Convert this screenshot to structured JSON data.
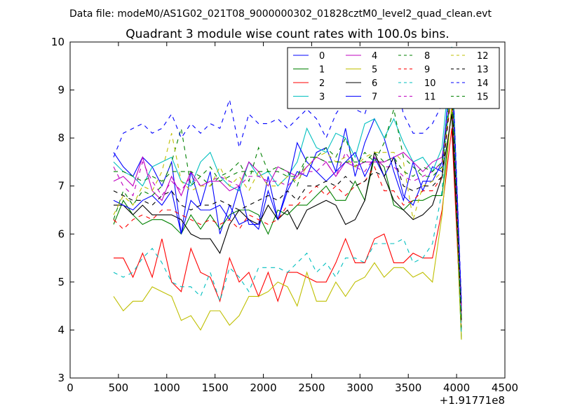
{
  "suptitle": "Data file: modeM0/AS1G02_021T08_9000000302_01828cztM0_level2_quad_clean.evt",
  "chart_data": {
    "type": "line",
    "title": "Quadrant 3 module wise count rates with 100.0s bins.",
    "xlabel": "",
    "ylabel": "",
    "x_offset_label": "+1.91771e8",
    "xlim": [
      0,
      4500
    ],
    "ylim": [
      3,
      10
    ],
    "xticks": [
      "0",
      "500",
      "1000",
      "1500",
      "2000",
      "2500",
      "3000",
      "3500",
      "4000",
      "4500"
    ],
    "yticks": [
      "3",
      "4",
      "5",
      "6",
      "7",
      "8",
      "9",
      "10"
    ],
    "grid": false,
    "legend_position": "top-right",
    "x": [
      450,
      550,
      650,
      750,
      850,
      950,
      1050,
      1150,
      1250,
      1350,
      1450,
      1550,
      1650,
      1750,
      1850,
      1950,
      2050,
      2150,
      2250,
      2350,
      2450,
      2550,
      2650,
      2750,
      2850,
      2950,
      3050,
      3150,
      3250,
      3350,
      3450,
      3550,
      3650,
      3750,
      3850,
      3950,
      4050
    ],
    "series": [
      {
        "name": "0",
        "color": "#0000ff",
        "dash": "solid",
        "values": [
          7.7,
          7.4,
          7.2,
          7.6,
          7.4,
          7.0,
          7.5,
          6.0,
          7.3,
          6.6,
          7.3,
          6.0,
          6.6,
          6.2,
          6.3,
          6.1,
          6.9,
          6.3,
          6.9,
          7.3,
          7.2,
          7.7,
          7.8,
          7.3,
          8.2,
          7.2,
          7.9,
          8.4,
          8.0,
          7.3,
          6.7,
          7.5,
          6.9,
          7.4,
          7.3,
          9.8,
          4.5
        ]
      },
      {
        "name": "1",
        "color": "#008000",
        "dash": "solid",
        "values": [
          6.2,
          6.7,
          6.4,
          6.2,
          6.3,
          6.3,
          6.2,
          6.0,
          6.4,
          6.1,
          6.4,
          6.1,
          6.4,
          6.5,
          6.5,
          6.4,
          6.0,
          6.5,
          6.4,
          6.6,
          6.6,
          6.8,
          7.0,
          6.7,
          6.7,
          7.1,
          6.7,
          7.6,
          7.4,
          6.6,
          6.5,
          6.7,
          6.7,
          6.8,
          6.8,
          8.6,
          3.8
        ]
      },
      {
        "name": "2",
        "color": "#ff0000",
        "dash": "solid",
        "values": [
          5.5,
          5.5,
          5.1,
          5.6,
          5.1,
          5.9,
          5.0,
          4.8,
          5.7,
          5.2,
          5.1,
          4.6,
          5.5,
          5.0,
          5.2,
          4.7,
          5.2,
          4.6,
          5.2,
          5.2,
          5.1,
          5.0,
          5.0,
          5.4,
          5.9,
          5.4,
          5.4,
          5.9,
          6.0,
          5.4,
          5.4,
          5.6,
          5.5,
          5.5,
          6.5,
          8.2,
          4.0
        ]
      },
      {
        "name": "3",
        "color": "#00bfbf",
        "dash": "solid",
        "values": [
          7.5,
          7.3,
          7.2,
          7.0,
          7.4,
          7.5,
          7.6,
          7.1,
          7.0,
          7.5,
          7.7,
          7.2,
          7.0,
          6.9,
          7.5,
          7.2,
          7.3,
          7.0,
          7.2,
          7.5,
          8.2,
          7.8,
          7.7,
          8.1,
          8.0,
          7.6,
          8.3,
          8.4,
          8.0,
          8.4,
          7.9,
          7.5,
          7.6,
          7.3,
          7.8,
          9.9,
          4.2
        ]
      },
      {
        "name": "4",
        "color": "#bf00bf",
        "dash": "solid",
        "values": [
          7.1,
          7.2,
          7.0,
          7.6,
          6.9,
          6.7,
          7.2,
          6.8,
          7.3,
          7.0,
          7.1,
          7.1,
          6.9,
          7.0,
          7.5,
          7.3,
          7.0,
          7.4,
          7.3,
          7.2,
          7.4,
          7.6,
          7.5,
          7.2,
          7.5,
          7.4,
          7.5,
          7.5,
          7.5,
          7.6,
          7.7,
          7.5,
          7.3,
          7.5,
          7.6,
          9.0,
          4.3
        ]
      },
      {
        "name": "5",
        "color": "#bfbf00",
        "dash": "solid",
        "values": [
          4.7,
          4.4,
          4.6,
          4.6,
          4.9,
          4.8,
          4.7,
          4.2,
          4.3,
          4.0,
          4.4,
          4.4,
          4.1,
          4.3,
          4.7,
          4.7,
          4.8,
          5.0,
          4.9,
          4.5,
          5.2,
          4.6,
          4.6,
          5.0,
          4.7,
          5.0,
          5.1,
          5.4,
          5.1,
          5.3,
          5.3,
          5.1,
          5.2,
          5.0,
          6.4,
          8.7,
          3.8
        ]
      },
      {
        "name": "6",
        "color": "#000000",
        "dash": "solid",
        "values": [
          6.6,
          6.6,
          6.4,
          6.6,
          6.4,
          6.4,
          6.4,
          6.3,
          6.0,
          5.9,
          5.9,
          5.6,
          6.2,
          6.5,
          6.3,
          6.2,
          6.6,
          6.3,
          6.5,
          6.1,
          6.5,
          6.6,
          6.7,
          6.6,
          6.2,
          6.3,
          6.7,
          7.7,
          7.2,
          6.7,
          6.5,
          6.3,
          6.4,
          6.6,
          7.2,
          8.5,
          4.2
        ]
      },
      {
        "name": "7",
        "color": "#0000ff",
        "dash": "solid",
        "values": [
          6.7,
          6.6,
          6.5,
          6.7,
          6.8,
          6.6,
          6.9,
          6.0,
          6.7,
          6.5,
          6.5,
          6.6,
          6.3,
          7.0,
          6.2,
          6.2,
          7.2,
          6.3,
          7.0,
          7.9,
          7.5,
          7.3,
          7.1,
          7.3,
          7.5,
          7.7,
          7.2,
          7.6,
          7.2,
          7.6,
          6.8,
          6.6,
          7.1,
          7.1,
          7.5,
          9.5,
          4.4
        ]
      },
      {
        "name": "8",
        "color": "#008000",
        "dash": "dashed",
        "values": [
          6.3,
          6.9,
          6.6,
          6.9,
          6.8,
          7.0,
          7.5,
          8.2,
          7.0,
          7.2,
          7.0,
          7.2,
          7.3,
          7.5,
          7.1,
          7.8,
          7.3,
          7.4,
          7.3,
          7.0,
          7.6,
          7.6,
          7.8,
          7.6,
          8.0,
          7.4,
          7.7,
          7.5,
          7.9,
          8.6,
          7.6,
          7.4,
          7.2,
          7.2,
          7.4,
          9.3,
          4.0
        ]
      },
      {
        "name": "9",
        "color": "#ff0000",
        "dash": "dashed",
        "values": [
          6.3,
          6.1,
          6.3,
          6.4,
          6.3,
          6.5,
          6.5,
          6.4,
          6.3,
          6.2,
          6.3,
          6.2,
          6.3,
          6.1,
          6.4,
          6.3,
          6.2,
          6.3,
          6.6,
          6.6,
          6.8,
          7.0,
          6.8,
          7.0,
          6.8,
          7.0,
          7.1,
          7.4,
          6.9,
          6.9,
          6.6,
          6.7,
          6.9,
          6.9,
          7.2,
          9.0,
          4.1
        ]
      },
      {
        "name": "10",
        "color": "#00bfbf",
        "dash": "dashed",
        "values": [
          5.2,
          5.1,
          5.2,
          5.5,
          5.7,
          5.4,
          5.0,
          4.9,
          4.9,
          4.7,
          5.2,
          4.6,
          5.3,
          5.1,
          4.8,
          5.3,
          5.3,
          5.3,
          5.2,
          5.4,
          5.6,
          5.2,
          5.4,
          5.1,
          5.5,
          5.5,
          5.4,
          5.8,
          5.8,
          5.8,
          5.9,
          5.4,
          5.5,
          5.8,
          6.9,
          9.8,
          3.9
        ]
      },
      {
        "name": "11",
        "color": "#bf00bf",
        "dash": "dashed",
        "values": [
          7.4,
          7.0,
          6.8,
          7.5,
          7.1,
          6.8,
          7.1,
          6.9,
          7.2,
          7.0,
          7.1,
          7.2,
          7.1,
          7.0,
          7.2,
          7.2,
          7.1,
          7.1,
          7.0,
          7.2,
          7.3,
          7.3,
          7.5,
          7.2,
          7.7,
          7.4,
          7.3,
          7.6,
          7.4,
          7.4,
          7.2,
          7.1,
          7.2,
          7.3,
          7.5,
          9.0,
          4.5
        ]
      },
      {
        "name": "12",
        "color": "#bfbf00",
        "dash": "dashed",
        "values": [
          6.4,
          6.8,
          6.6,
          7.0,
          6.9,
          7.3,
          8.1,
          7.1,
          6.9,
          7.0,
          7.0,
          7.4,
          7.0,
          7.2,
          6.9,
          7.3,
          7.0,
          7.0,
          7.2,
          7.1,
          7.4,
          7.6,
          7.7,
          7.5,
          7.6,
          7.4,
          7.6,
          7.7,
          7.7,
          7.7,
          7.5,
          6.3,
          7.0,
          7.1,
          7.3,
          9.2,
          4.1
        ]
      },
      {
        "name": "13",
        "color": "#000000",
        "dash": "dashed",
        "values": [
          6.9,
          6.8,
          6.7,
          6.7,
          6.6,
          6.8,
          6.9,
          6.6,
          6.5,
          6.6,
          6.6,
          6.7,
          6.6,
          6.5,
          6.6,
          6.7,
          6.8,
          6.7,
          6.9,
          6.7,
          7.0,
          7.0,
          7.1,
          7.0,
          7.2,
          7.0,
          7.1,
          7.3,
          7.2,
          7.6,
          7.0,
          6.9,
          7.0,
          7.0,
          7.2,
          9.1,
          4.2
        ]
      },
      {
        "name": "14",
        "color": "#0000ff",
        "dash": "dashed",
        "values": [
          7.6,
          8.1,
          8.2,
          8.3,
          8.1,
          8.2,
          8.5,
          8.0,
          8.3,
          8.1,
          8.3,
          8.2,
          8.8,
          7.8,
          8.5,
          8.3,
          8.3,
          8.4,
          8.2,
          8.4,
          8.6,
          8.4,
          8.0,
          8.5,
          8.8,
          8.6,
          8.5,
          9.1,
          9.0,
          9.4,
          8.5,
          8.1,
          8.1,
          8.3,
          8.7,
          9.8,
          4.6
        ]
      },
      {
        "name": "15",
        "color": "#008000",
        "dash": "dashed",
        "values": [
          7.3,
          7.3,
          7.2,
          7.1,
          7.2,
          7.1,
          7.3,
          7.3,
          7.3,
          7.2,
          7.4,
          7.1,
          7.2,
          7.3,
          7.3,
          7.3,
          7.3,
          7.3,
          7.2,
          7.2,
          7.6,
          7.6,
          7.5,
          7.5,
          7.5,
          7.5,
          7.5,
          7.7,
          7.5,
          7.6,
          7.3,
          7.2,
          7.4,
          7.3,
          7.5,
          9.0,
          4.2
        ]
      }
    ]
  }
}
